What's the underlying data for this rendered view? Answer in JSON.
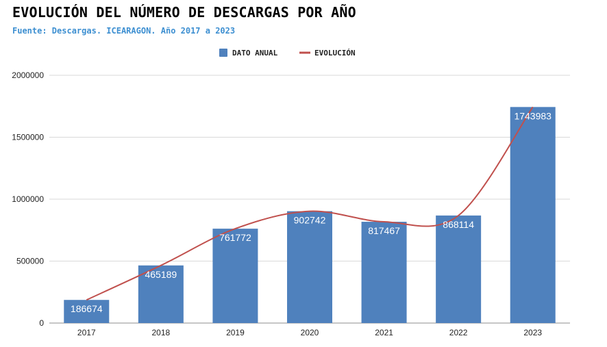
{
  "chart_data": {
    "type": "bar",
    "title": "EVOLUCIÓN DEL NÚMERO DE DESCARGAS POR AÑO",
    "subtitle": "Fuente: Descargas. ICEARAGON. Año 2017 a 2023",
    "categories": [
      "2017",
      "2018",
      "2019",
      "2020",
      "2021",
      "2022",
      "2023"
    ],
    "series": [
      {
        "name": "DATO ANUAL",
        "kind": "bar",
        "color": "#4f81bd",
        "values": [
          186674,
          465189,
          761772,
          902742,
          817467,
          868114,
          1743983
        ]
      },
      {
        "name": "EVOLUCIÓN",
        "kind": "line",
        "color": "#c0504d",
        "values": [
          186674,
          465189,
          761772,
          902742,
          817467,
          868114,
          1743983
        ]
      }
    ],
    "data_labels": [
      "186674",
      "465189",
      "761772",
      "902742",
      "817467",
      "868114",
      "1743983"
    ],
    "y_ticks": [
      "0",
      "500000",
      "1000000",
      "1500000",
      "2000000"
    ],
    "ylim": [
      0,
      2000000
    ],
    "xlabel": "",
    "ylabel": "",
    "grid": true,
    "legend_position": "top-center"
  }
}
